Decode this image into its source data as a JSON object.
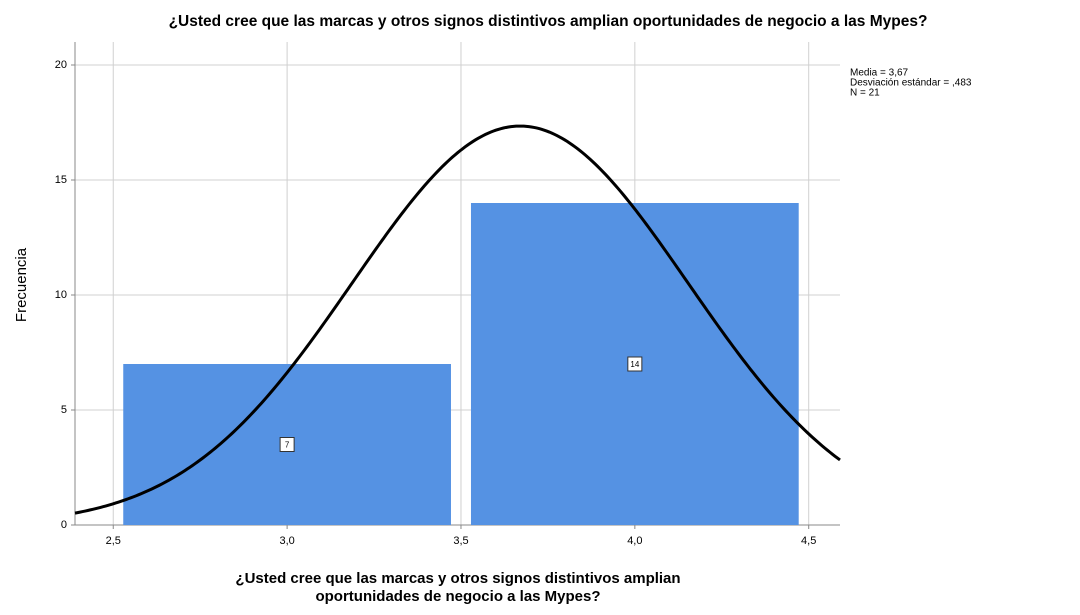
{
  "chart_data": {
    "type": "histogram",
    "title": "¿Usted cree que las marcas y otros signos distintivos amplian oportunidades de negocio a las Mypes?",
    "xlabel": [
      "¿Usted cree que las marcas y otros signos distintivos amplian",
      "oportunidades de negocio a las Mypes?"
    ],
    "ylabel": "Frecuencia",
    "bins": [
      2.5,
      3.5,
      4.5
    ],
    "values": [
      7,
      14
    ],
    "color": "#5592e3",
    "xlim": [
      2.39,
      4.59
    ],
    "ylim": [
      0,
      21
    ],
    "xticks": [
      {
        "value": 2.5,
        "label": "2,5"
      },
      {
        "value": 3.0,
        "label": "3,0"
      },
      {
        "value": 3.5,
        "label": "3,5"
      },
      {
        "value": 4.0,
        "label": "4,0"
      },
      {
        "value": 4.5,
        "label": "4,5"
      }
    ],
    "yticks": [
      0,
      5,
      10,
      15,
      20
    ],
    "grid": true,
    "normal_curve": {
      "mean": 3.67,
      "sd": 0.483,
      "n": 21,
      "color": "#000000"
    },
    "annotations": [
      "Media = 3,67",
      "Desviación estándar = ,483",
      "N = 21"
    ]
  }
}
